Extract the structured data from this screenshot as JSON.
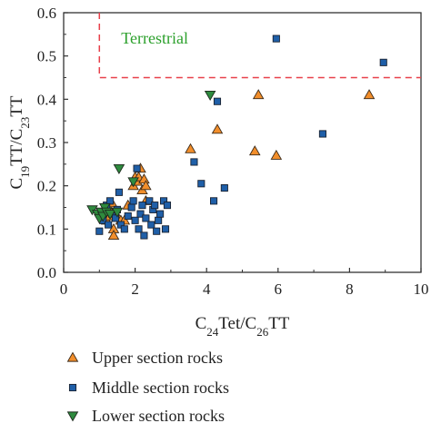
{
  "chart_data": {
    "type": "scatter",
    "xlabel": {
      "base": "C",
      "sub1": "24",
      "mid": "Tet/C",
      "sub2": "26",
      "tail": "TT"
    },
    "ylabel": {
      "base": "C",
      "sub1": "19",
      "mid": "TT/C",
      "sub2": "23",
      "tail": "TT"
    },
    "xlim": [
      0,
      10
    ],
    "ylim": [
      0,
      0.6
    ],
    "xticks": [
      0,
      2,
      4,
      6,
      8,
      10
    ],
    "yticks": [
      0.0,
      0.1,
      0.2,
      0.3,
      0.4,
      0.5,
      0.6
    ],
    "xtick_labels": [
      "0",
      "2",
      "4",
      "6",
      "8",
      "10"
    ],
    "ytick_labels": [
      "0.0",
      "0.1",
      "0.2",
      "0.3",
      "0.4",
      "0.5",
      "0.6"
    ],
    "grid": false,
    "legend_position": "below",
    "annotation": {
      "text": "Terrestrial",
      "color": "#2ca02c",
      "region": {
        "x_min": 1,
        "y_min": 0.45
      },
      "border_color": "#e8404a"
    },
    "series": [
      {
        "name": "Upper section rocks",
        "marker": "triangle-up",
        "color": "#f28e2b",
        "points": [
          [
            1.1,
            0.14
          ],
          [
            1.2,
            0.12
          ],
          [
            1.25,
            0.15
          ],
          [
            1.3,
            0.13
          ],
          [
            1.35,
            0.16
          ],
          [
            1.4,
            0.1
          ],
          [
            1.4,
            0.085
          ],
          [
            1.5,
            0.13
          ],
          [
            1.6,
            0.12
          ],
          [
            1.7,
            0.12
          ],
          [
            1.8,
            0.155
          ],
          [
            1.95,
            0.2
          ],
          [
            2.0,
            0.22
          ],
          [
            2.05,
            0.21
          ],
          [
            2.1,
            0.22
          ],
          [
            2.15,
            0.24
          ],
          [
            2.2,
            0.19
          ],
          [
            2.25,
            0.215
          ],
          [
            2.3,
            0.2
          ],
          [
            2.3,
            0.165
          ],
          [
            3.55,
            0.285
          ],
          [
            4.3,
            0.33
          ],
          [
            5.35,
            0.28
          ],
          [
            5.45,
            0.41
          ],
          [
            5.95,
            0.27
          ],
          [
            8.55,
            0.41
          ]
        ]
      },
      {
        "name": "Middle section rocks",
        "marker": "square",
        "color": "#1f5fa8",
        "points": [
          [
            1.0,
            0.095
          ],
          [
            1.1,
            0.12
          ],
          [
            1.15,
            0.14
          ],
          [
            1.2,
            0.155
          ],
          [
            1.25,
            0.11
          ],
          [
            1.3,
            0.165
          ],
          [
            1.35,
            0.135
          ],
          [
            1.45,
            0.125
          ],
          [
            1.5,
            0.145
          ],
          [
            1.55,
            0.185
          ],
          [
            1.6,
            0.11
          ],
          [
            1.7,
            0.1
          ],
          [
            1.8,
            0.13
          ],
          [
            1.9,
            0.15
          ],
          [
            1.95,
            0.165
          ],
          [
            2.0,
            0.12
          ],
          [
            2.05,
            0.24
          ],
          [
            2.1,
            0.1
          ],
          [
            2.15,
            0.135
          ],
          [
            2.2,
            0.155
          ],
          [
            2.25,
            0.085
          ],
          [
            2.3,
            0.125
          ],
          [
            2.4,
            0.165
          ],
          [
            2.45,
            0.11
          ],
          [
            2.5,
            0.145
          ],
          [
            2.55,
            0.155
          ],
          [
            2.6,
            0.095
          ],
          [
            2.65,
            0.12
          ],
          [
            2.7,
            0.135
          ],
          [
            2.8,
            0.165
          ],
          [
            2.85,
            0.1
          ],
          [
            2.9,
            0.155
          ],
          [
            3.65,
            0.255
          ],
          [
            3.85,
            0.205
          ],
          [
            4.2,
            0.165
          ],
          [
            4.3,
            0.395
          ],
          [
            4.5,
            0.195
          ],
          [
            5.95,
            0.54
          ],
          [
            7.25,
            0.32
          ],
          [
            8.95,
            0.485
          ]
        ]
      },
      {
        "name": "Lower section rocks",
        "marker": "triangle-down",
        "color": "#2e8b3e",
        "points": [
          [
            0.8,
            0.145
          ],
          [
            0.95,
            0.135
          ],
          [
            1.0,
            0.125
          ],
          [
            1.05,
            0.14
          ],
          [
            1.1,
            0.13
          ],
          [
            1.15,
            0.15
          ],
          [
            1.2,
            0.14
          ],
          [
            1.3,
            0.135
          ],
          [
            1.5,
            0.14
          ],
          [
            1.55,
            0.24
          ],
          [
            1.95,
            0.21
          ],
          [
            4.1,
            0.41
          ]
        ]
      }
    ]
  }
}
